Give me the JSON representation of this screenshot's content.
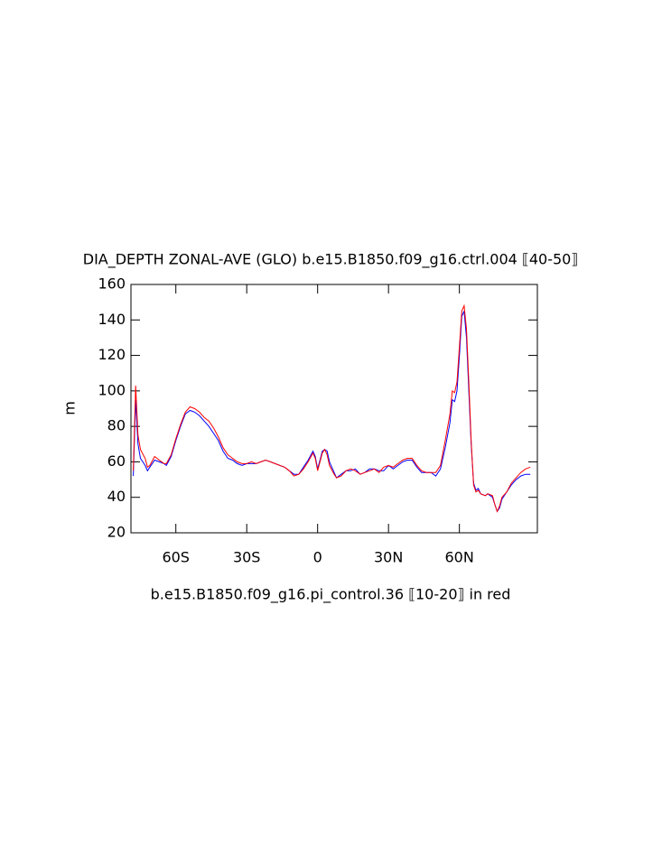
{
  "chart_data": {
    "type": "line",
    "title": "DIA_DEPTH ZONAL-AVE (GLO) b.e15.B1850.f09_g16.ctrl.004 ⟦40-50⟧",
    "subtitle": "b.e15.B1850.f09_g16.pi_control.36 ⟦10-20⟧ in red",
    "y_label": "m",
    "x": [
      -78,
      -77,
      -76,
      -75,
      -73,
      -72,
      -71,
      -69,
      -67,
      -65,
      -64,
      -62,
      -60,
      -58,
      -56,
      -54,
      -52,
      -50,
      -48,
      -46,
      -44,
      -42,
      -40,
      -38,
      -36,
      -34,
      -32,
      -30,
      -28,
      -26,
      -24,
      -22,
      -20,
      -18,
      -16,
      -14,
      -12,
      -10,
      -8,
      -6,
      -4,
      -2,
      -1,
      0,
      1,
      2,
      3,
      4,
      5,
      7,
      8,
      10,
      12,
      14,
      16,
      18,
      20,
      22,
      24,
      26,
      28,
      30,
      32,
      34,
      36,
      38,
      40,
      42,
      44,
      46,
      48,
      50,
      52,
      54,
      56,
      57,
      58,
      59,
      60,
      61,
      62,
      63,
      64,
      65,
      66,
      67,
      68,
      69,
      71,
      72,
      74,
      75,
      76,
      77,
      78,
      80,
      82,
      84,
      86,
      88,
      90
    ],
    "series": [
      {
        "name": "ctrl.004",
        "color": "#0000ff",
        "values": [
          52,
          95,
          70,
          62,
          58,
          55,
          57,
          61,
          60,
          59,
          58,
          63,
          72,
          80,
          87,
          89,
          88,
          86,
          83,
          80,
          76,
          72,
          66,
          62,
          61,
          59,
          58,
          59,
          59,
          59,
          60,
          61,
          60,
          59,
          58,
          57,
          55,
          53,
          53,
          57,
          61,
          66,
          63,
          56,
          61,
          66,
          67,
          66,
          60,
          54,
          51,
          53,
          55,
          55,
          56,
          53,
          54,
          56,
          56,
          55,
          55,
          58,
          56,
          58,
          60,
          61,
          61,
          57,
          54,
          54,
          54,
          52,
          56,
          68,
          82,
          95,
          94,
          100,
          120,
          142,
          145,
          130,
          100,
          70,
          48,
          44,
          45,
          42,
          41,
          42,
          40,
          36,
          32,
          34,
          39,
          43,
          47,
          50,
          52,
          53,
          53
        ]
      },
      {
        "name": "pi_control.36",
        "color": "#ff0000",
        "values": [
          55,
          103,
          75,
          67,
          62,
          57,
          58,
          63,
          61,
          59,
          59,
          64,
          73,
          81,
          88,
          91,
          90,
          88,
          85,
          83,
          79,
          74,
          68,
          64,
          62,
          60,
          59,
          59,
          60,
          59,
          60,
          61,
          60,
          59,
          58,
          57,
          55,
          52,
          53,
          56,
          60,
          65,
          62,
          55,
          60,
          65,
          67,
          64,
          58,
          53,
          51,
          52,
          55,
          56,
          55,
          53,
          54,
          55,
          56,
          54,
          57,
          58,
          57,
          59,
          61,
          62,
          62,
          58,
          55,
          54,
          54,
          54,
          58,
          72,
          87,
          100,
          99,
          105,
          125,
          145,
          148,
          135,
          105,
          72,
          47,
          43,
          44,
          42,
          41,
          42,
          41,
          36,
          32,
          35,
          40,
          43,
          48,
          51,
          54,
          56,
          57
        ]
      }
    ],
    "xlim": [
      -79,
      93
    ],
    "xticks": [
      {
        "value": -60,
        "label": "60S"
      },
      {
        "value": -30,
        "label": "30S"
      },
      0,
      {
        "value": 30,
        "label": "30N"
      },
      {
        "value": 60,
        "label": "60N"
      }
    ],
    "ylim": [
      20,
      160
    ],
    "yticks": [
      20,
      40,
      60,
      80,
      100,
      120,
      140,
      160
    ]
  }
}
